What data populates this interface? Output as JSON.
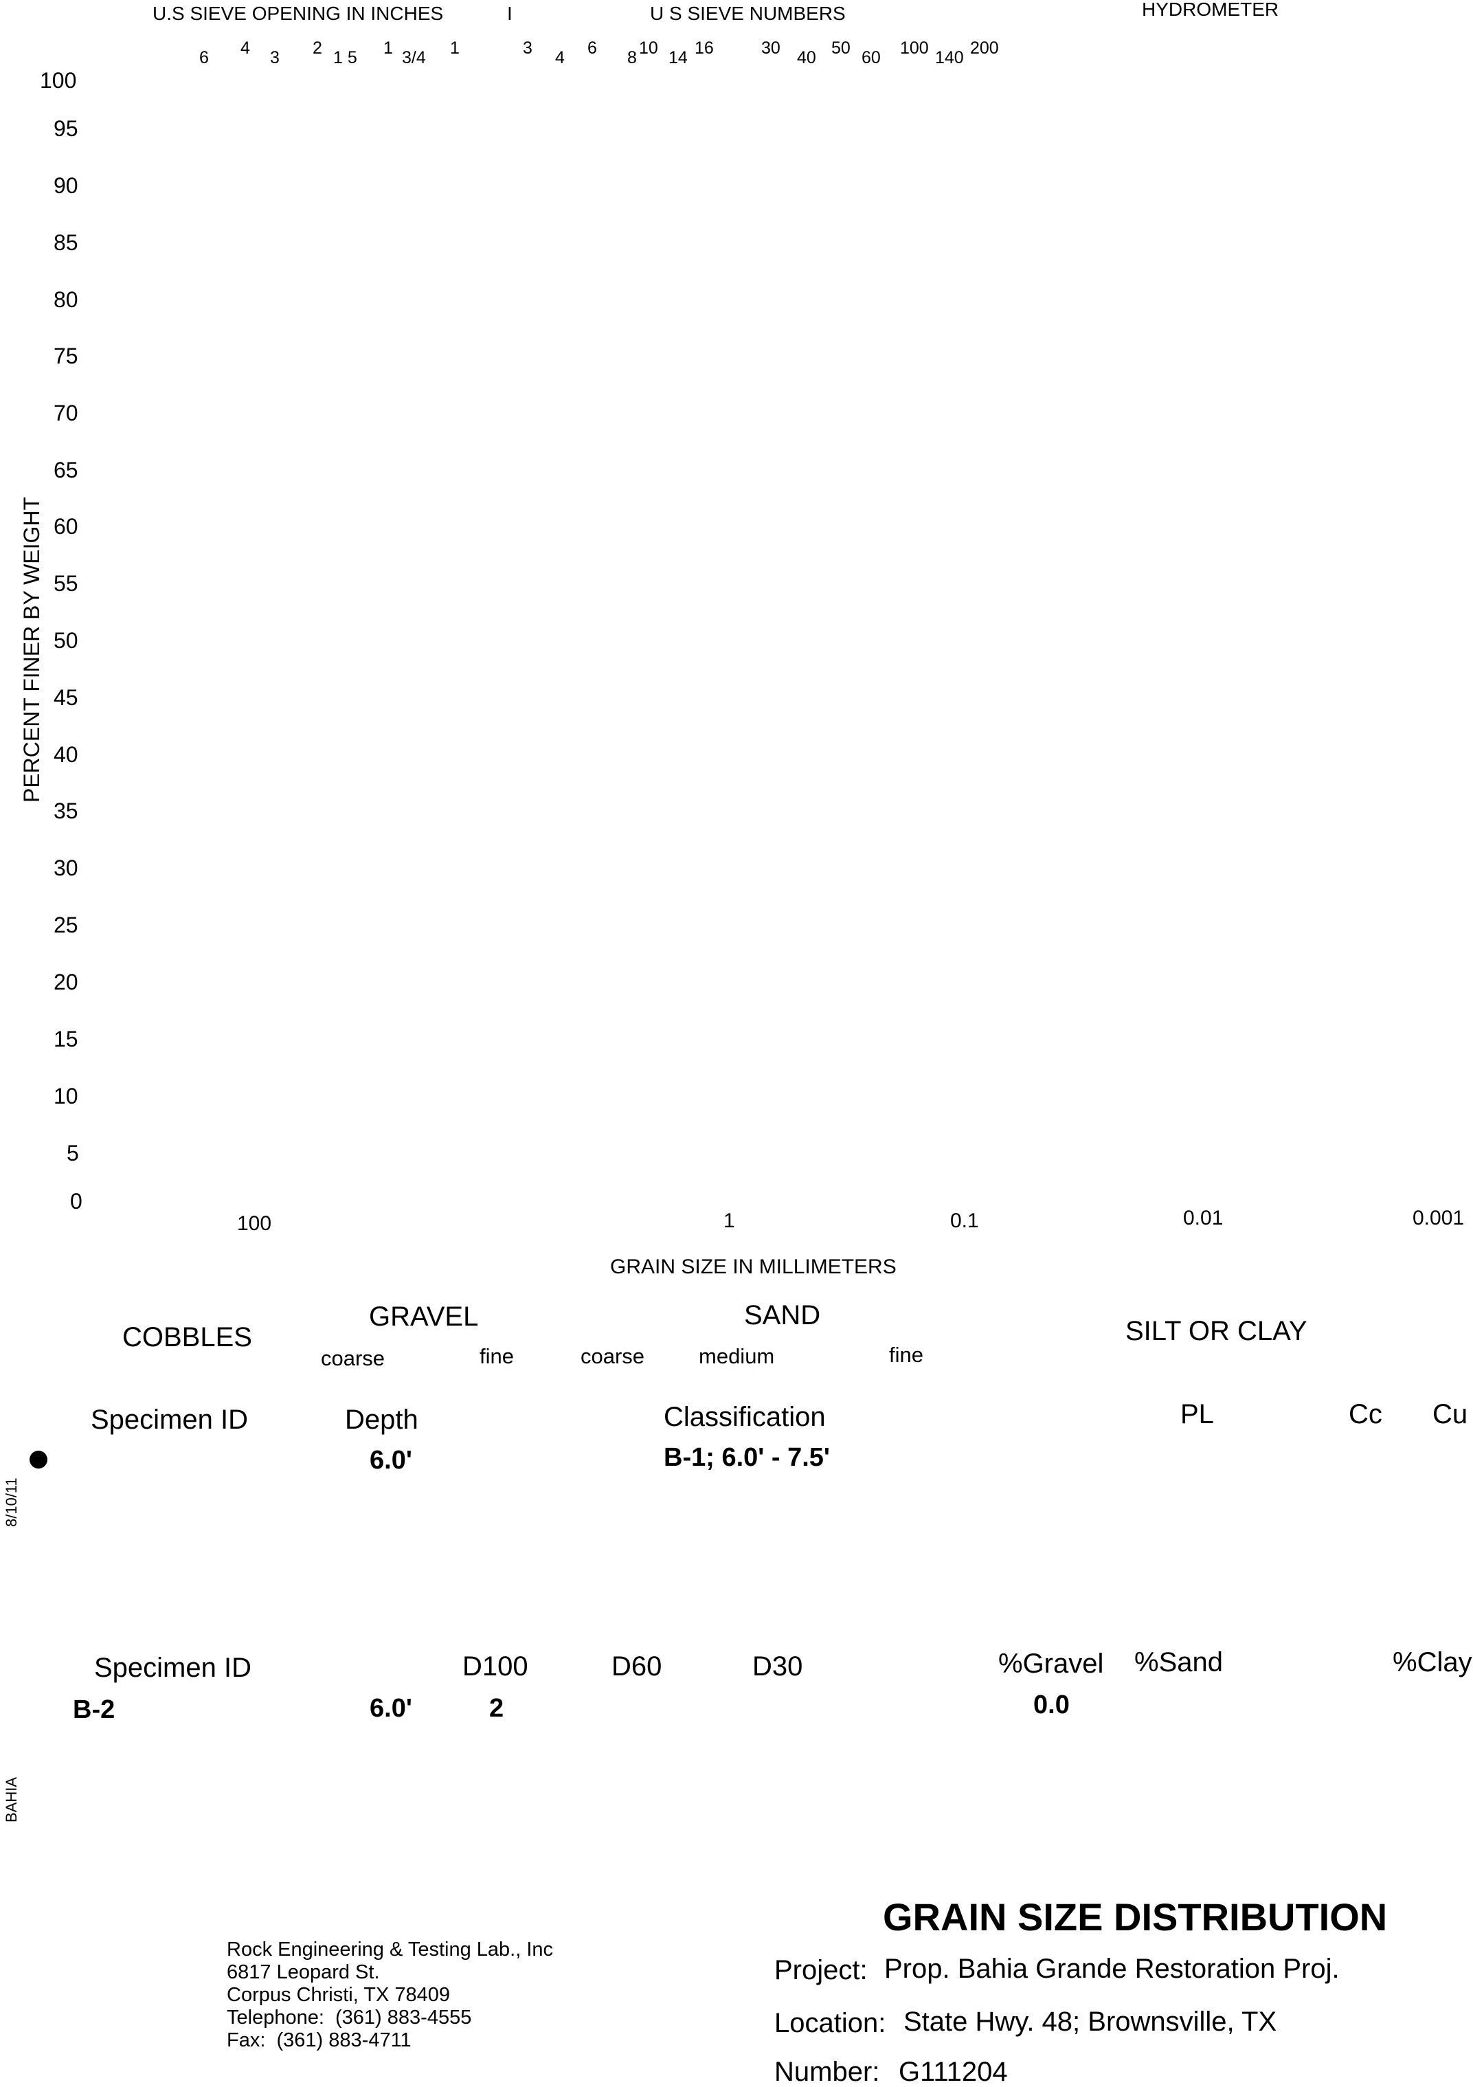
{
  "chart": {
    "sieve_opening_label": "U.S  SIEVE OPENING IN INCHES",
    "separator": "I",
    "sieve_numbers_label": "U S  SIEVE NUMBERS",
    "hydrometer_label": "HYDROMETER",
    "sieve_openings": [
      "6",
      "4",
      "3",
      "2",
      "1 5",
      "1",
      "3/4",
      "1"
    ],
    "sieve_numbers": [
      "3",
      "4",
      "6",
      "8",
      "10",
      "14",
      "16",
      "30",
      "40",
      "50",
      "60",
      "100",
      "140",
      "200"
    ],
    "y_axis_label": "PERCENT FINER BY WEIGHT",
    "y_ticks": [
      "100",
      "95",
      "90",
      "85",
      "80",
      "75",
      "70",
      "65",
      "60",
      "55",
      "50",
      "45",
      "40",
      "35",
      "30",
      "25",
      "20",
      "15",
      "10",
      "5",
      "0"
    ],
    "x_ticks": [
      "100",
      "1",
      "0.1",
      "0.01",
      "0.001"
    ],
    "x_axis_label": "GRAIN SIZE IN MILLIMETERS"
  },
  "soil_classes": {
    "cobbles": "COBBLES",
    "gravel": "GRAVEL",
    "gravel_coarse": "coarse",
    "gravel_fine": "fine",
    "sand": "SAND",
    "sand_coarse": "coarse",
    "sand_medium": "medium",
    "sand_fine": "fine",
    "silt_clay": "SILT OR CLAY"
  },
  "table1": {
    "headers": {
      "specimen_id": "Specimen ID",
      "depth": "Depth",
      "classification": "Classification",
      "pl": "PL",
      "cc": "Cc",
      "cu": "Cu"
    },
    "row": {
      "depth": "6.0'",
      "classification": "B-1; 6.0' - 7.5'"
    }
  },
  "table2": {
    "headers": {
      "specimen_id": "Specimen ID",
      "d100": "D100",
      "d60": "D60",
      "d30": "D30",
      "gravel": "%Gravel",
      "sand": "%Sand",
      "clay": "%Clay"
    },
    "row": {
      "specimen_id": "B-2",
      "depth": "6.0'",
      "d100": "2",
      "gravel": "0.0"
    }
  },
  "side_labels": {
    "date": "8/10/11",
    "file": "BAHIA"
  },
  "footer": {
    "title": "GRAIN SIZE DISTRIBUTION",
    "company": {
      "name": "Rock Engineering & Testing Lab., Inc",
      "street": "6817 Leopard St.",
      "city": "Corpus Christi, TX 78409",
      "telephone": "Telephone:  (361) 883-4555",
      "fax": "Fax:  (361) 883-4711"
    },
    "project_label": "Project:",
    "project_value": "Prop. Bahia Grande Restoration Proj.",
    "location_label": "Location:",
    "location_value": "State Hwy. 48; Brownsville, TX",
    "number_label": "Number:",
    "number_value": "G111204"
  }
}
